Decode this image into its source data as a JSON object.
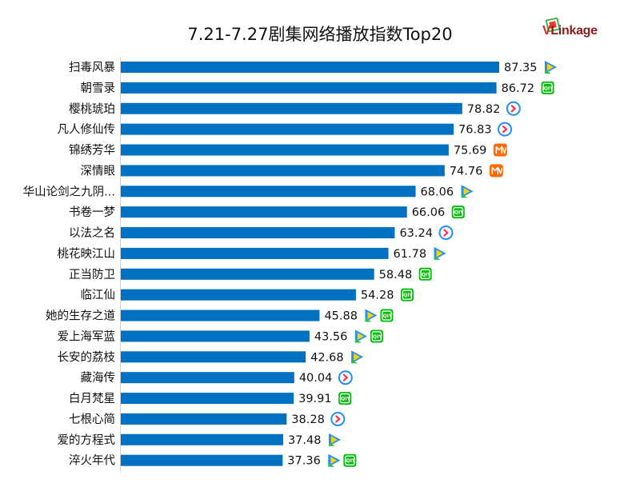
{
  "chart_data": {
    "type": "bar",
    "orientation": "horizontal",
    "title": "7.21-7.27剧集网络播放指数Top20",
    "xlim": [
      0,
      100
    ],
    "bar_color": "#0070c0",
    "categories": [
      "扫毒风暴",
      "朝雪录",
      "樱桃琥珀",
      "凡人修仙传",
      "锦绣芳华",
      "深情眼",
      "华山论剑之九阴...",
      "书卷一梦",
      "以法之名",
      "桃花映江山",
      "正当防卫",
      "临江仙",
      "她的生存之道",
      "爱上海军蓝",
      "长安的荔枝",
      "藏海传",
      "白月梵星",
      "七根心简",
      "爱的方程式",
      "淬火年代"
    ],
    "values": [
      87.35,
      86.72,
      78.82,
      76.83,
      75.69,
      74.76,
      68.06,
      66.06,
      63.24,
      61.78,
      58.48,
      54.28,
      45.88,
      43.56,
      42.68,
      40.04,
      39.91,
      38.28,
      37.48,
      37.36
    ],
    "platforms": [
      [
        "tencent"
      ],
      [
        "iqiyi"
      ],
      [
        "youku"
      ],
      [
        "youku"
      ],
      [
        "mango"
      ],
      [
        "mango"
      ],
      [
        "tencent"
      ],
      [
        "iqiyi"
      ],
      [
        "youku"
      ],
      [
        "tencent"
      ],
      [
        "iqiyi"
      ],
      [
        "iqiyi"
      ],
      [
        "tencent",
        "iqiyi"
      ],
      [
        "tencent",
        "iqiyi"
      ],
      [
        "tencent"
      ],
      [
        "youku"
      ],
      [
        "iqiyi"
      ],
      [
        "youku"
      ],
      [
        "tencent"
      ],
      [
        "tencent",
        "iqiyi"
      ]
    ]
  },
  "logo": {
    "text_v": "V",
    "text_rest": "Linkage"
  },
  "icons": {
    "tencent": "tencent-video-icon",
    "iqiyi": "iqiyi-icon",
    "youku": "youku-icon",
    "mango": "mango-tv-icon"
  },
  "colors": {
    "iqiyi": "#00be06",
    "mango": "#ff6a00",
    "youku": "#1e8fff",
    "youku_arrow": "#ff2d55"
  }
}
